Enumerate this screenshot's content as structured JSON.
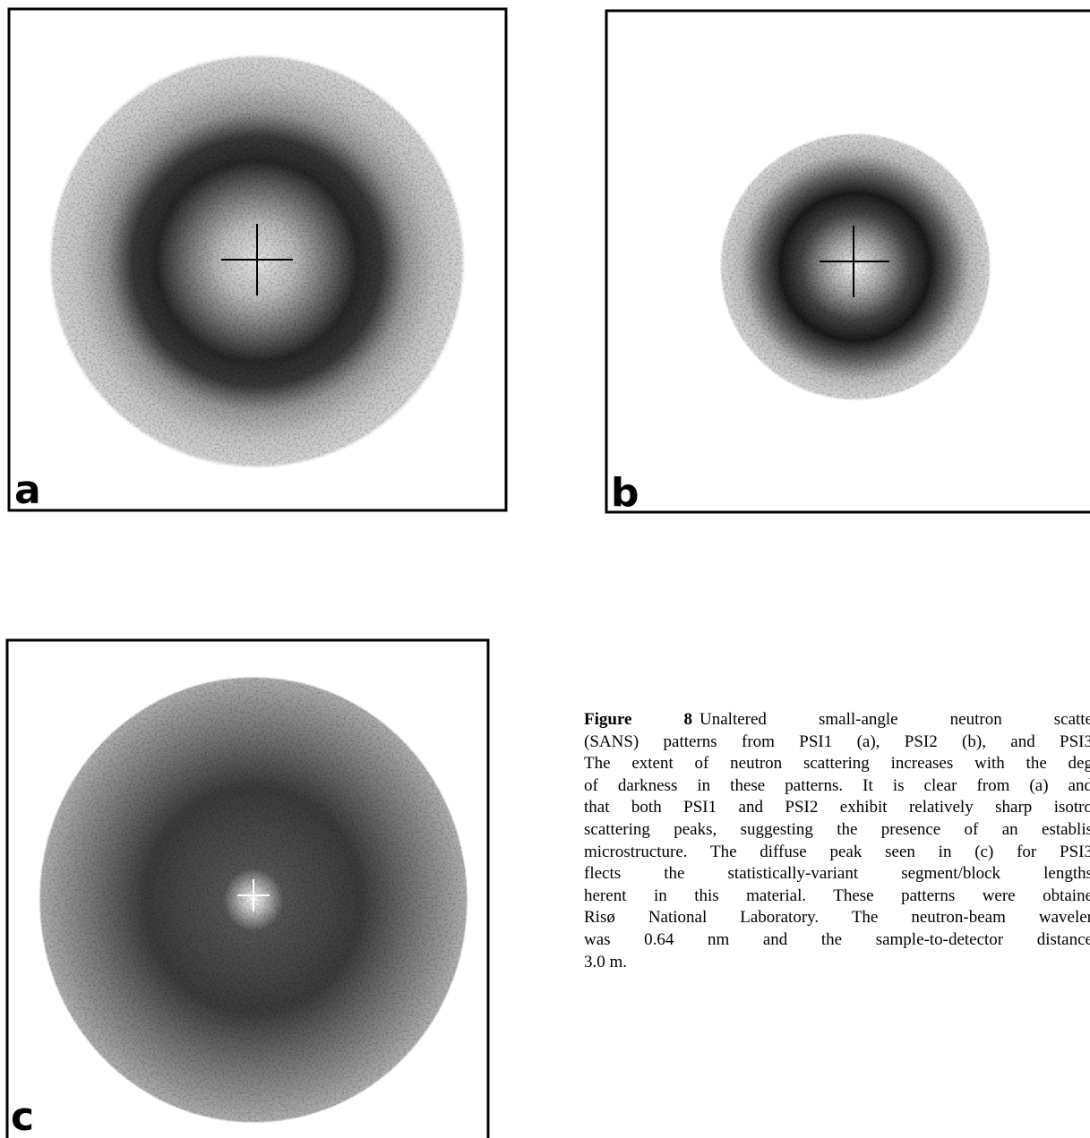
{
  "panels": [
    {
      "label": "a"
    },
    {
      "label": "b"
    },
    {
      "label": "c"
    }
  ],
  "caption": {
    "figure_label": "Figure 8",
    "lines": [
      "Unaltered small-angle neutron scatte",
      "(SANS) patterns from PSI1 (a), PSI2 (b), and PSI3",
      "The extent of neutron scattering increases with the deg",
      "of darkness in these patterns. It is clear from (a) and",
      "that both PSI1 and PSI2 exhibit relatively sharp isotro",
      "scattering peaks, suggesting the presence of an establis",
      "microstructure. The diffuse peak seen in (c) for PSI3",
      "flects the statistically-variant segment/block lengths",
      "herent in this material. These patterns were obtaine",
      "Risø National Laboratory. The neutron-beam waveler",
      "was 0.64 nm and the sample-to-detector distance",
      "3.0 m."
    ]
  }
}
